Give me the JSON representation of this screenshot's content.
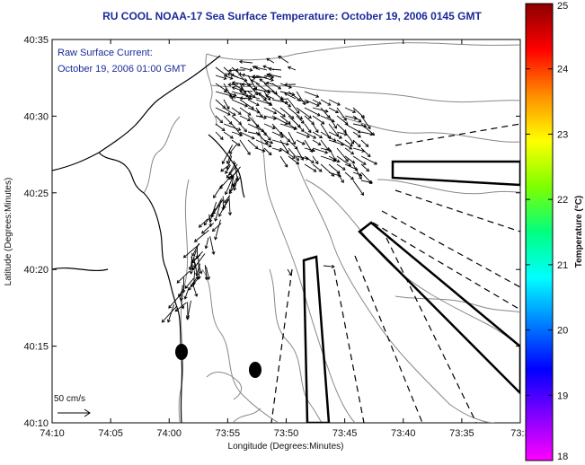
{
  "title": "RU COOL  NOAA-17  Sea Surface Temperature:  October 19, 2006 0145 GMT",
  "annotation": {
    "line1": "Raw Surface Current:",
    "line2": "October 19, 2006 01:00 GMT"
  },
  "scale_label": "50 cm/s",
  "xlabel": "Longitude (Degrees:Minutes)",
  "ylabel": "Latitude (Degrees:Minutes)",
  "colorbar": {
    "label": "Temperature (°C)",
    "ticks": [
      "25",
      "24",
      "23",
      "22",
      "21",
      "20",
      "19",
      "18"
    ],
    "colors": [
      "#8b0000",
      "#ff0000",
      "#ff8c00",
      "#ffff00",
      "#7fff00",
      "#00ff80",
      "#00ffff",
      "#0080ff",
      "#0000ff",
      "#8000ff",
      "#ff00ff"
    ]
  },
  "x_ticks": [
    "74:10",
    "74:05",
    "74:00",
    "73:55",
    "73:50",
    "73:45",
    "73:40",
    "73:35",
    "73:3"
  ],
  "y_ticks": [
    "40:35",
    "40:30",
    "40:25",
    "40:20",
    "40:15",
    "40:10"
  ],
  "colors": {
    "title": "#1a2a9a",
    "contour": "#888888",
    "coast": "#000000"
  }
}
